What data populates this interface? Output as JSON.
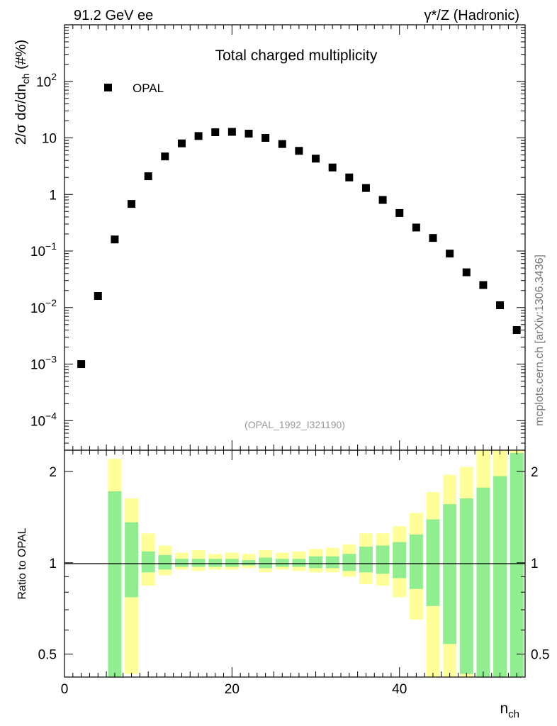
{
  "header": {
    "left_label": "91.2 GeV ee",
    "right_label": "γ*/Z (Hadronic)"
  },
  "side_label": "mcplots.cern.ch [arXiv:1306.3436]",
  "colors": {
    "marker": "#000000",
    "band_inner": "#90ee90",
    "band_outer": "#ffff99",
    "reference_line": "#000000"
  },
  "chart_data": [
    {
      "type": "scatter",
      "title": "Total charged multiplicity",
      "ylabel": "2/σ  dσ/dn_ch (#%)",
      "ylabel_parts": {
        "prefix": "2/σ  dσ/dn",
        "sub": "ch",
        "suffix": " (#%)"
      },
      "xlabel": "n_ch",
      "xlabel_parts": {
        "base": "n",
        "sub": "ch"
      },
      "yscale": "log",
      "xlim": [
        0,
        55
      ],
      "ylim": [
        3e-05,
        1000
      ],
      "yticks": [
        {
          "value": 0.0001,
          "base": "10",
          "exp": "−4"
        },
        {
          "value": 0.001,
          "base": "10",
          "exp": "−3"
        },
        {
          "value": 0.01,
          "base": "10",
          "exp": "−2"
        },
        {
          "value": 0.1,
          "base": "10",
          "exp": "−1"
        },
        {
          "value": 1,
          "base": "1",
          "exp": ""
        },
        {
          "value": 10,
          "base": "10",
          "exp": ""
        },
        {
          "value": 100,
          "base": "10",
          "exp": "2"
        }
      ],
      "legend": {
        "entries": [
          "OPAL"
        ],
        "position": "top-left"
      },
      "annotation": "(OPAL_1992_I321190)",
      "series": [
        {
          "name": "OPAL",
          "x": [
            2,
            4,
            6,
            8,
            10,
            12,
            14,
            16,
            18,
            20,
            22,
            24,
            26,
            28,
            30,
            32,
            34,
            36,
            38,
            40,
            42,
            44,
            46,
            48,
            50,
            52,
            54
          ],
          "y": [
            0.001,
            0.016,
            0.16,
            0.68,
            2.1,
            4.7,
            8.0,
            10.8,
            12.6,
            12.8,
            11.9,
            10.0,
            7.8,
            5.9,
            4.3,
            3.0,
            2.0,
            1.3,
            0.8,
            0.47,
            0.26,
            0.17,
            0.09,
            0.042,
            0.025,
            0.011,
            0.004
          ]
        }
      ]
    },
    {
      "type": "bar",
      "subtype": "ratio-bands",
      "ylabel": "Ratio to OPAL",
      "xlabel": "n_ch",
      "yscale": "log",
      "xlim": [
        0,
        55
      ],
      "ylim": [
        0.42,
        2.35
      ],
      "xticks": [
        0,
        20,
        40
      ],
      "yticks": [
        {
          "value": 0.5,
          "label": "0.5"
        },
        {
          "value": 1,
          "label": "1"
        },
        {
          "value": 2,
          "label": "2"
        }
      ],
      "reference": 1,
      "bin_width": 1.6,
      "x": [
        6,
        8,
        10,
        12,
        14,
        16,
        18,
        20,
        22,
        24,
        26,
        28,
        30,
        32,
        34,
        36,
        38,
        40,
        42,
        44,
        46,
        48,
        50,
        52,
        54
      ],
      "inner_band": [
        [
          0.2,
          1.72
        ],
        [
          0.77,
          1.36
        ],
        [
          0.93,
          1.09
        ],
        [
          0.95,
          1.06
        ],
        [
          0.97,
          1.03
        ],
        [
          0.97,
          1.03
        ],
        [
          0.97,
          1.03
        ],
        [
          0.97,
          1.03
        ],
        [
          0.98,
          1.02
        ],
        [
          0.96,
          1.04
        ],
        [
          0.97,
          1.03
        ],
        [
          0.97,
          1.03
        ],
        [
          0.96,
          1.05
        ],
        [
          0.96,
          1.05
        ],
        [
          0.94,
          1.07
        ],
        [
          0.93,
          1.13
        ],
        [
          0.92,
          1.14
        ],
        [
          0.89,
          1.17
        ],
        [
          0.82,
          1.24
        ],
        [
          0.72,
          1.39
        ],
        [
          0.54,
          1.56
        ],
        [
          0.43,
          1.63
        ],
        [
          0.2,
          1.77
        ],
        [
          0.2,
          1.93
        ],
        [
          0.2,
          2.3
        ]
      ],
      "outer_band": [
        [
          0.2,
          2.2
        ],
        [
          0.43,
          1.63
        ],
        [
          0.84,
          1.25
        ],
        [
          0.91,
          1.14
        ],
        [
          0.95,
          1.08
        ],
        [
          0.94,
          1.1
        ],
        [
          0.95,
          1.07
        ],
        [
          0.95,
          1.08
        ],
        [
          0.96,
          1.07
        ],
        [
          0.93,
          1.1
        ],
        [
          0.95,
          1.08
        ],
        [
          0.94,
          1.09
        ],
        [
          0.93,
          1.11
        ],
        [
          0.93,
          1.12
        ],
        [
          0.9,
          1.15
        ],
        [
          0.85,
          1.25
        ],
        [
          0.84,
          1.25
        ],
        [
          0.77,
          1.32
        ],
        [
          0.65,
          1.46
        ],
        [
          0.2,
          1.71
        ],
        [
          0.2,
          1.95
        ],
        [
          0.2,
          2.07
        ],
        [
          0.2,
          2.35
        ],
        [
          0.2,
          2.35
        ],
        [
          0.2,
          2.35
        ]
      ]
    }
  ]
}
